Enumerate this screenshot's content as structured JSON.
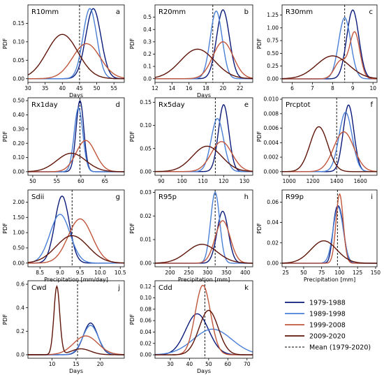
{
  "legend": {
    "items": [
      {
        "label": "1979-1988",
        "color": "#0a1a7a",
        "dash": false
      },
      {
        "label": "1989-1998",
        "color": "#4a7fd6",
        "dash": false
      },
      {
        "label": "1999-2008",
        "color": "#c0563c",
        "dash": false
      },
      {
        "label": "2009-2020",
        "color": "#5e1408",
        "dash": false
      },
      {
        "label": "Mean (1979-2020)",
        "color": "#000000",
        "dash": true
      }
    ]
  },
  "chart_data": [
    {
      "type": "line",
      "name": "R10mm",
      "letter": "a",
      "xlabel": "Days",
      "ylabel": "PDF",
      "xlim": [
        30,
        58
      ],
      "xticks": [
        30,
        35,
        40,
        45,
        50,
        55
      ],
      "ylim": [
        -0.01,
        0.2
      ],
      "yticks": [
        0.0,
        0.05,
        0.1,
        0.15
      ],
      "ytick_labels": [
        "0.00",
        "0.05",
        "0.10",
        "0.15"
      ],
      "mean": 45,
      "series": [
        {
          "name": "1979-1988",
          "peaks": [
            {
              "m": 49,
              "s": 2.2,
              "a": 0.19
            }
          ]
        },
        {
          "name": "1989-1998",
          "peaks": [
            {
              "m": 48,
              "s": 2.0,
              "a": 0.19
            }
          ]
        },
        {
          "name": "1999-2008",
          "peaks": [
            {
              "m": 47,
              "s": 4.0,
              "a": 0.095
            }
          ]
        },
        {
          "name": "2009-2020",
          "peaks": [
            {
              "m": 40,
              "s": 4.5,
              "a": 0.12
            }
          ]
        }
      ]
    },
    {
      "type": "line",
      "name": "R20mm",
      "letter": "b",
      "xlabel": "Days",
      "ylabel": "PDF",
      "xlim": [
        12,
        23.5
      ],
      "xticks": [
        12,
        14,
        16,
        18,
        20,
        22
      ],
      "ylim": [
        -0.03,
        0.6
      ],
      "yticks": [
        0.0,
        0.1,
        0.2,
        0.3,
        0.4,
        0.5
      ],
      "ytick_labels": [
        "0.0",
        "0.1",
        "0.2",
        "0.3",
        "0.4",
        "0.5"
      ],
      "mean": 18.8,
      "series": [
        {
          "name": "1979-1988",
          "peaks": [
            {
              "m": 20,
              "s": 0.75,
              "a": 0.56
            }
          ]
        },
        {
          "name": "1989-1998",
          "peaks": [
            {
              "m": 19.2,
              "s": 0.7,
              "a": 0.55
            }
          ]
        },
        {
          "name": "1999-2008",
          "peaks": [
            {
              "m": 20,
              "s": 1.2,
              "a": 0.3
            }
          ]
        },
        {
          "name": "2009-2020",
          "peaks": [
            {
              "m": 17,
              "s": 2.0,
              "a": 0.24
            }
          ]
        }
      ]
    },
    {
      "type": "line",
      "name": "R30mm",
      "letter": "c",
      "xlabel": "",
      "ylabel": "PDF",
      "xlim": [
        5.5,
        10.2
      ],
      "xticks": [
        6,
        7,
        8,
        9,
        10
      ],
      "ylim": [
        -0.07,
        1.45
      ],
      "yticks": [
        0.0,
        0.25,
        0.5,
        0.75,
        1.0,
        1.25
      ],
      "ytick_labels": [
        "0.00",
        "0.25",
        "0.50",
        "0.75",
        "1.00",
        "1.25"
      ],
      "mean": 8.6,
      "series": [
        {
          "name": "1979-1988",
          "peaks": [
            {
              "m": 9.0,
              "s": 0.3,
              "a": 1.35
            }
          ]
        },
        {
          "name": "1989-1998",
          "peaks": [
            {
              "m": 8.6,
              "s": 0.3,
              "a": 1.2
            }
          ]
        },
        {
          "name": "1999-2008",
          "peaks": [
            {
              "m": 9.1,
              "s": 0.25,
              "a": 0.9
            },
            {
              "m": 8.4,
              "s": 0.3,
              "a": 0.35
            }
          ]
        },
        {
          "name": "2009-2020",
          "peaks": [
            {
              "m": 8.0,
              "s": 0.8,
              "a": 0.45
            }
          ]
        }
      ]
    },
    {
      "type": "line",
      "name": "Rx1day",
      "letter": "d",
      "xlabel": "",
      "ylabel": "PDF",
      "xlim": [
        49,
        69
      ],
      "xticks": [
        50,
        55,
        60,
        65
      ],
      "ylim": [
        -0.025,
        0.52
      ],
      "yticks": [
        0.0,
        0.1,
        0.2,
        0.3,
        0.4,
        0.5
      ],
      "ytick_labels": [
        "0.00",
        "0.10",
        "0.20",
        "0.30",
        "0.40",
        "0.50"
      ],
      "mean": 59.8,
      "series": [
        {
          "name": "1979-1988",
          "peaks": [
            {
              "m": 59.8,
              "s": 0.8,
              "a": 0.5
            }
          ]
        },
        {
          "name": "1989-1998",
          "peaks": [
            {
              "m": 59.5,
              "s": 0.9,
              "a": 0.45
            }
          ]
        },
        {
          "name": "1999-2008",
          "peaks": [
            {
              "m": 61,
              "s": 2.0,
              "a": 0.22
            }
          ]
        },
        {
          "name": "2009-2020",
          "peaks": [
            {
              "m": 58,
              "s": 3.0,
              "a": 0.13
            }
          ]
        }
      ]
    },
    {
      "type": "line",
      "name": "Rx5day",
      "letter": "e",
      "xlabel": "",
      "ylabel": "PDF",
      "xlim": [
        87,
        134
      ],
      "xticks": [
        90,
        100,
        110,
        120,
        130
      ],
      "ylim": [
        -0.008,
        0.16
      ],
      "yticks": [
        0.0,
        0.05,
        0.1,
        0.15
      ],
      "ytick_labels": [
        "0.00",
        "0.05",
        "0.10",
        "0.15"
      ],
      "mean": 116,
      "series": [
        {
          "name": "1979-1988",
          "peaks": [
            {
              "m": 120,
              "s": 2.5,
              "a": 0.145
            }
          ]
        },
        {
          "name": "1989-1998",
          "peaks": [
            {
              "m": 117,
              "s": 3.0,
              "a": 0.115
            }
          ]
        },
        {
          "name": "1999-2008",
          "peaks": [
            {
              "m": 119,
              "s": 5.0,
              "a": 0.065
            }
          ]
        },
        {
          "name": "2009-2020",
          "peaks": [
            {
              "m": 112,
              "s": 7.0,
              "a": 0.055
            }
          ]
        }
      ]
    },
    {
      "type": "line",
      "name": "Prcptot",
      "letter": "f",
      "xlabel": "",
      "ylabel": "PDF",
      "xlim": [
        940,
        1740
      ],
      "xticks": [
        1000,
        1200,
        1400,
        1600
      ],
      "ylim": [
        -0.0005,
        0.0102
      ],
      "yticks": [
        0.0,
        0.002,
        0.004,
        0.006,
        0.008,
        0.01
      ],
      "ytick_labels": [
        "0.000",
        "0.002",
        "0.004",
        "0.006",
        "0.008",
        "0.010"
      ],
      "mean": 1400,
      "series": [
        {
          "name": "1979-1988",
          "peaks": [
            {
              "m": 1500,
              "s": 45,
              "a": 0.0092
            }
          ]
        },
        {
          "name": "1989-1998",
          "peaks": [
            {
              "m": 1475,
              "s": 55,
              "a": 0.0082
            }
          ]
        },
        {
          "name": "1999-2008",
          "peaks": [
            {
              "m": 1460,
              "s": 85,
              "a": 0.0055
            }
          ]
        },
        {
          "name": "2009-2020",
          "peaks": [
            {
              "m": 1250,
              "s": 75,
              "a": 0.0062
            }
          ]
        }
      ]
    },
    {
      "type": "line",
      "name": "Sdii",
      "letter": "g",
      "xlabel": "Precipitation [mm/day]",
      "ylabel": "PDF",
      "xlim": [
        8.2,
        10.6
      ],
      "xticks": [
        8.5,
        9.0,
        9.5,
        10.0,
        10.5
      ],
      "xtick_labels": [
        "8.5",
        "9.0",
        "9.5",
        "10.0",
        "10.5"
      ],
      "ylim": [
        -0.12,
        2.4
      ],
      "yticks": [
        0.0,
        0.5,
        1.0,
        1.5,
        2.0
      ],
      "ytick_labels": [
        "0.00",
        "0.50",
        "1.00",
        "1.50",
        "2.00"
      ],
      "mean": 9.3,
      "series": [
        {
          "name": "1979-1988",
          "peaks": [
            {
              "m": 9.05,
              "s": 0.18,
              "a": 2.2
            }
          ]
        },
        {
          "name": "1989-1998",
          "peaks": [
            {
              "m": 9.0,
              "s": 0.25,
              "a": 1.6
            }
          ]
        },
        {
          "name": "1999-2008",
          "peaks": [
            {
              "m": 9.5,
              "s": 0.3,
              "a": 1.45
            }
          ]
        },
        {
          "name": "2009-2020",
          "peaks": [
            {
              "m": 9.3,
              "s": 0.4,
              "a": 0.9
            }
          ]
        }
      ]
    },
    {
      "type": "line",
      "name": "R95p",
      "letter": "h",
      "xlabel": "Precipitation [mm]",
      "ylabel": "PDF",
      "xlim": [
        160,
        420
      ],
      "xticks": [
        200,
        250,
        300,
        350,
        400
      ],
      "ylim": [
        -0.0015,
        0.031
      ],
      "yticks": [
        0.0,
        0.01,
        0.02,
        0.03
      ],
      "ytick_labels": [
        "0.00",
        "0.01",
        "0.02",
        "0.03"
      ],
      "mean": 320,
      "series": [
        {
          "name": "1979-1988",
          "peaks": [
            {
              "m": 340,
              "s": 15,
              "a": 0.022
            }
          ]
        },
        {
          "name": "1989-1998",
          "peaks": [
            {
              "m": 320,
              "s": 12,
              "a": 0.03
            }
          ]
        },
        {
          "name": "1999-2008",
          "peaks": [
            {
              "m": 340,
              "s": 20,
              "a": 0.018
            }
          ]
        },
        {
          "name": "2009-2020",
          "peaks": [
            {
              "m": 285,
              "s": 40,
              "a": 0.008
            }
          ]
        }
      ]
    },
    {
      "type": "line",
      "name": "R99p",
      "letter": "i",
      "xlabel": "Precipitation [mm]",
      "ylabel": "PDF",
      "xlim": [
        20,
        152
      ],
      "xticks": [
        25,
        50,
        75,
        100,
        125,
        150
      ],
      "ylim": [
        -0.0035,
        0.072
      ],
      "yticks": [
        0.0,
        0.02,
        0.04,
        0.06
      ],
      "ytick_labels": [
        "0.00",
        "0.02",
        "0.04",
        "0.06"
      ],
      "mean": 97,
      "series": [
        {
          "name": "1979-1988",
          "peaks": [
            {
              "m": 100,
              "s": 6,
              "a": 0.05
            },
            {
              "m": 93,
              "s": 4,
              "a": 0.02
            }
          ]
        },
        {
          "name": "1989-1998",
          "peaks": [
            {
              "m": 98,
              "s": 7,
              "a": 0.055
            }
          ]
        },
        {
          "name": "1999-2008",
          "peaks": [
            {
              "m": 100,
              "s": 5,
              "a": 0.068
            }
          ]
        },
        {
          "name": "2009-2020",
          "peaks": [
            {
              "m": 78,
              "s": 18,
              "a": 0.022
            }
          ]
        }
      ]
    },
    {
      "type": "line",
      "name": "Cwd",
      "letter": "j",
      "xlabel": "Days",
      "ylabel": "PDF",
      "xlim": [
        5,
        25
      ],
      "xticks": [
        10,
        15,
        20
      ],
      "ylim": [
        -0.03,
        0.63
      ],
      "yticks": [
        0.0,
        0.2,
        0.4,
        0.6
      ],
      "ytick_labels": [
        "0.0",
        "0.2",
        "0.4",
        "0.6"
      ],
      "mean": 15.3,
      "series": [
        {
          "name": "1979-1988",
          "peaks": [
            {
              "m": 18,
              "s": 1.5,
              "a": 0.27
            }
          ]
        },
        {
          "name": "1989-1998",
          "peaks": [
            {
              "m": 18,
              "s": 1.6,
              "a": 0.25
            }
          ]
        },
        {
          "name": "1999-2008",
          "peaks": [
            {
              "m": 17,
              "s": 2.5,
              "a": 0.16
            }
          ]
        },
        {
          "name": "2009-2020",
          "peaks": [
            {
              "m": 11,
              "s": 0.6,
              "a": 0.58
            },
            {
              "m": 16,
              "s": 2.0,
              "a": 0.05
            }
          ]
        }
      ]
    },
    {
      "type": "line",
      "name": "Cdd",
      "letter": "k",
      "xlabel": "Days",
      "ylabel": "PDF",
      "xlim": [
        22,
        73
      ],
      "xticks": [
        30,
        40,
        50,
        60,
        70
      ],
      "ylim": [
        -0.006,
        0.13
      ],
      "yticks": [
        0.0,
        0.02,
        0.04,
        0.06,
        0.08,
        0.1,
        0.12
      ],
      "ytick_labels": [
        "0.00",
        "0.02",
        "0.04",
        "0.06",
        "0.08",
        "0.10",
        "0.12"
      ],
      "mean": 48,
      "series": [
        {
          "name": "1979-1988",
          "peaks": [
            {
              "m": 44,
              "s": 6,
              "a": 0.072
            }
          ]
        },
        {
          "name": "1989-1998",
          "peaks": [
            {
              "m": 52,
              "s": 10,
              "a": 0.045
            }
          ]
        },
        {
          "name": "1999-2008",
          "peaks": [
            {
              "m": 47,
              "s": 4,
              "a": 0.122
            }
          ]
        },
        {
          "name": "2009-2020",
          "peaks": [
            {
              "m": 50,
              "s": 5,
              "a": 0.078
            }
          ]
        }
      ]
    }
  ]
}
